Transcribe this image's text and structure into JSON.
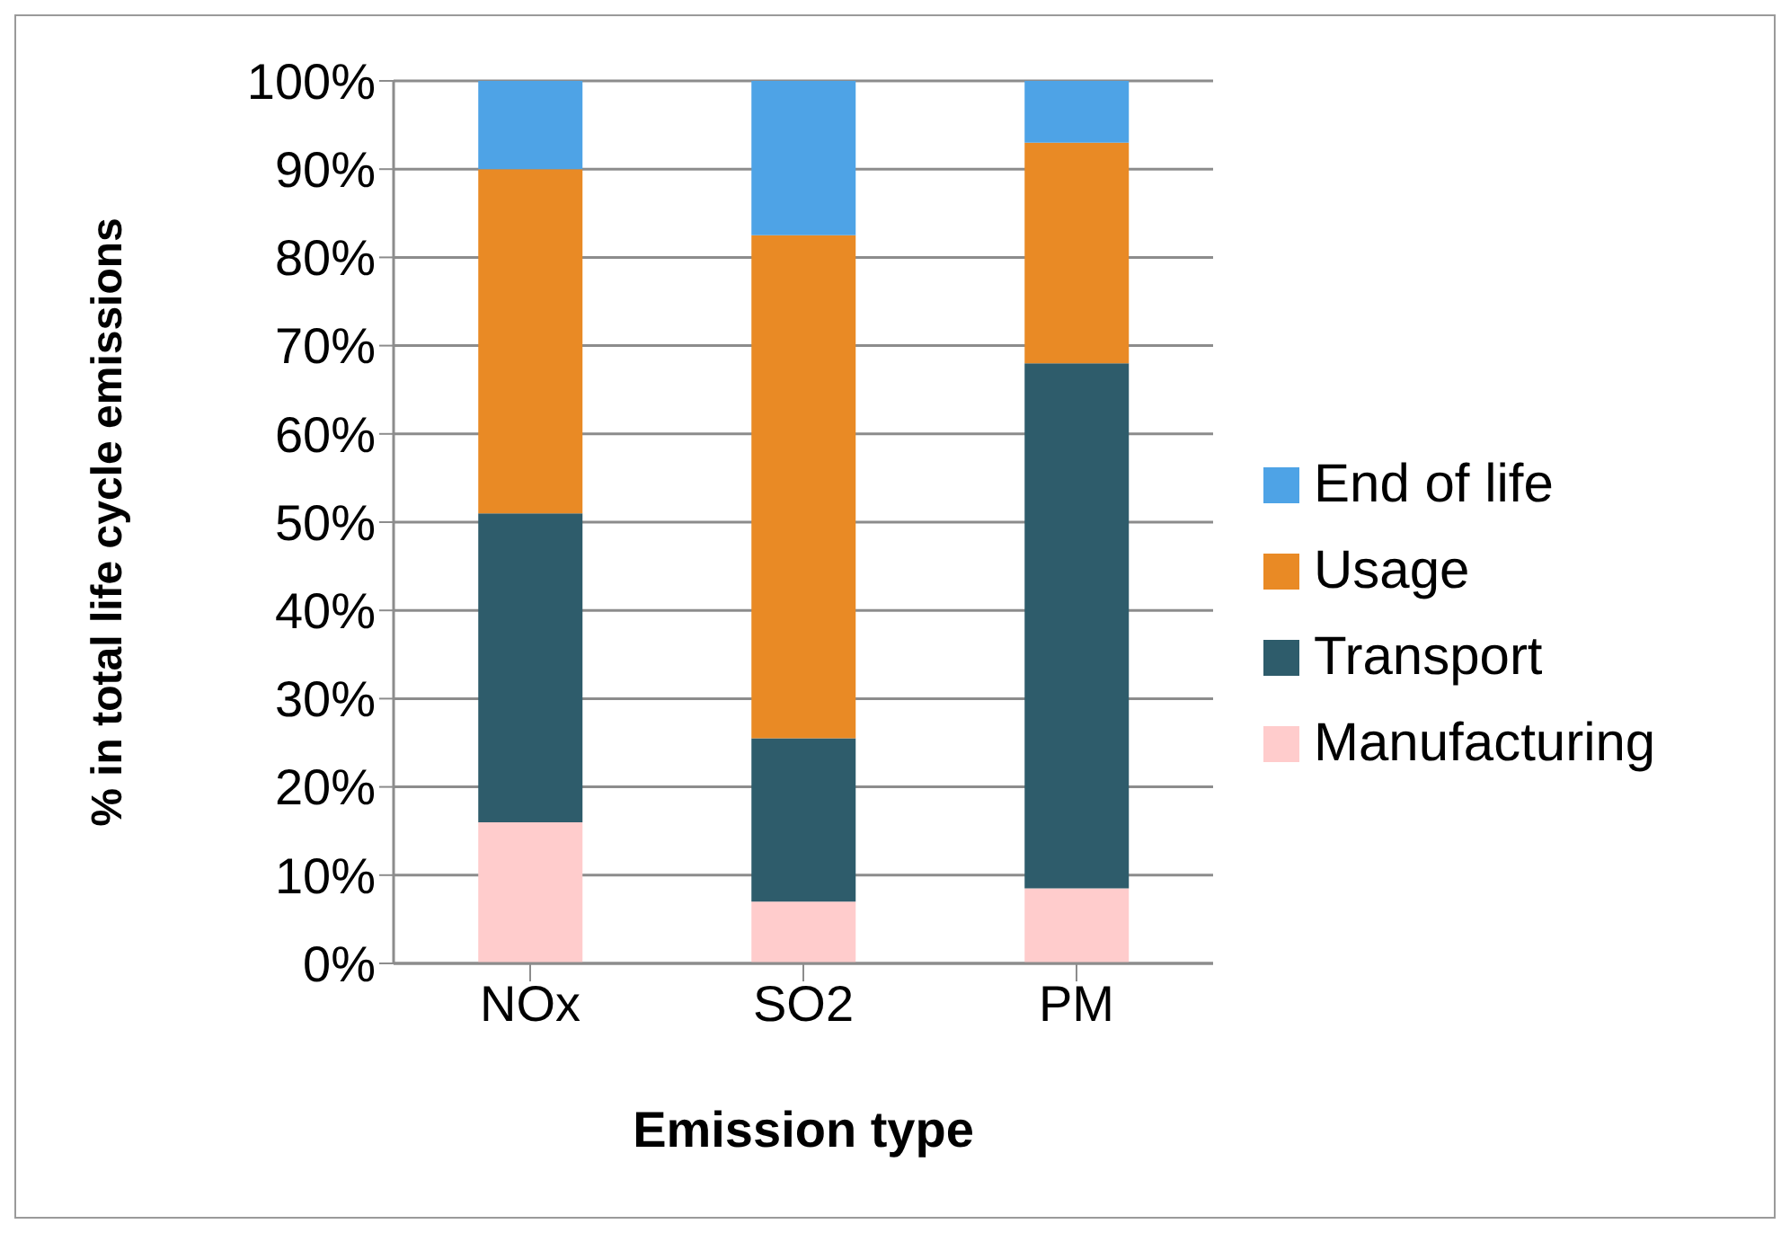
{
  "chart_data": {
    "type": "bar",
    "stacked": true,
    "xlabel": "Emission type",
    "ylabel": "% in total life cycle emissions",
    "categories": [
      "NOx",
      "SO2",
      "PM"
    ],
    "series": [
      {
        "name": "Manufacturing",
        "color": "#ffcccc",
        "values": [
          16,
          7,
          8.5
        ]
      },
      {
        "name": "Transport",
        "color": "#2e5c6b",
        "values": [
          35,
          18.5,
          59.5
        ]
      },
      {
        "name": "Usage",
        "color": "#e98a25",
        "values": [
          39,
          57,
          25
        ]
      },
      {
        "name": "End of life",
        "color": "#4ea3e6",
        "values": [
          10,
          17.5,
          7
        ]
      }
    ],
    "ylim": [
      0,
      100
    ],
    "yticks": [
      {
        "value": 0,
        "label": "0%"
      },
      {
        "value": 10,
        "label": "10%"
      },
      {
        "value": 20,
        "label": "20%"
      },
      {
        "value": 30,
        "label": "30%"
      },
      {
        "value": 40,
        "label": "40%"
      },
      {
        "value": 50,
        "label": "50%"
      },
      {
        "value": 60,
        "label": "60%"
      },
      {
        "value": 70,
        "label": "70%"
      },
      {
        "value": 80,
        "label": "80%"
      },
      {
        "value": 90,
        "label": "90%"
      },
      {
        "value": 100,
        "label": "100%"
      }
    ],
    "grid": "y",
    "legend": "right"
  }
}
